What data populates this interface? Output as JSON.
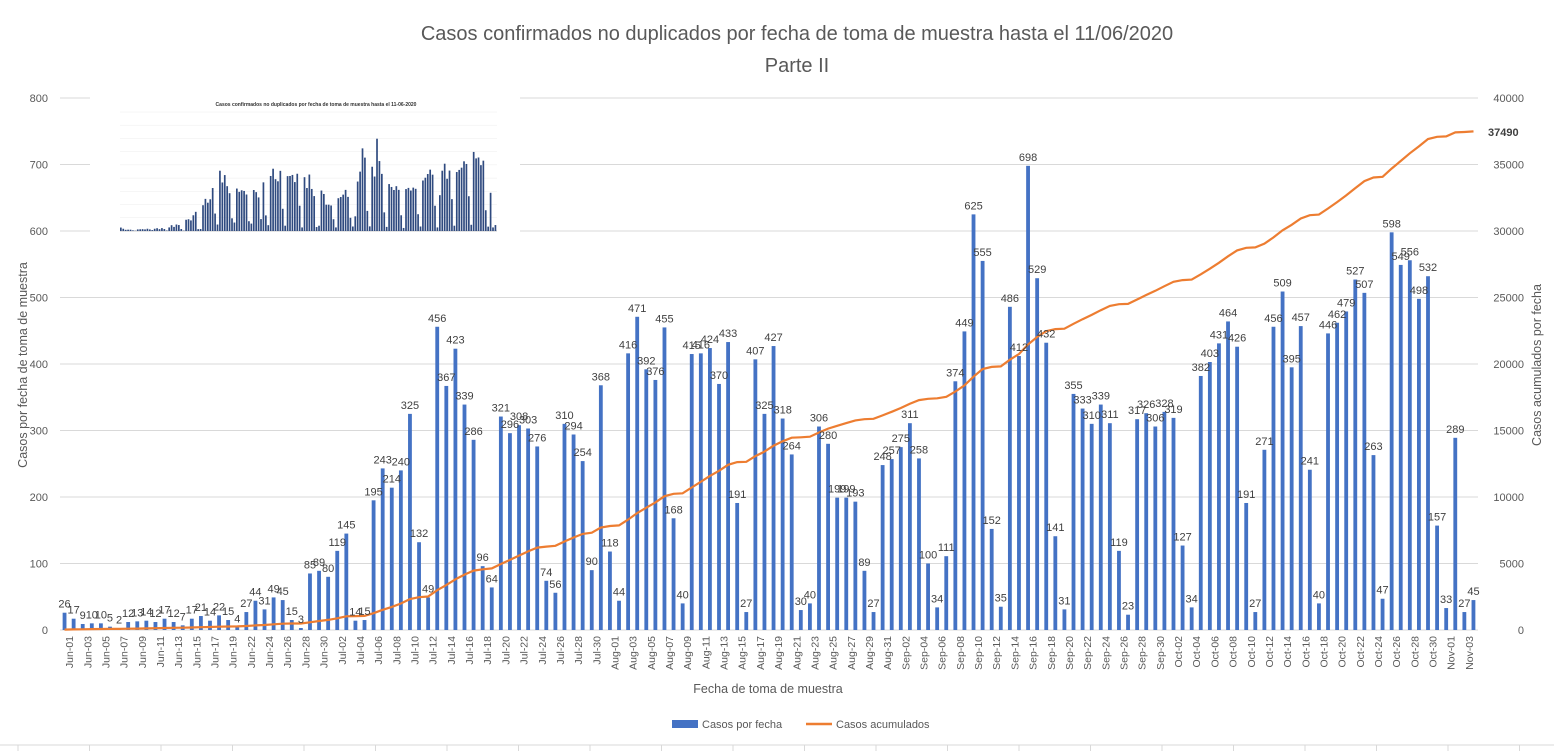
{
  "chart_data": {
    "type": "bar",
    "title": "Casos confirmados no duplicados por fecha de toma de muestra hasta el 11/06/2020",
    "subtitle": "Parte II",
    "xlabel": "Fecha de toma de muestra",
    "ylabel": "Casos por fecha de toma de muestra",
    "y2label": "Casos acumulados por fecha",
    "ylim": [
      0,
      800
    ],
    "y2lim": [
      0,
      40000
    ],
    "y_ticks": [
      "0",
      "100",
      "200",
      "300",
      "400",
      "500",
      "600",
      "700",
      "800"
    ],
    "y2_ticks": [
      "0",
      "5000",
      "10000",
      "15000",
      "20000",
      "25000",
      "30000",
      "35000",
      "40000"
    ],
    "x_tick_labels": [
      "Jun-01",
      "Jun-03",
      "Jun-05",
      "Jun-07",
      "Jun-09",
      "Jun-11",
      "Jun-13",
      "Jun-15",
      "Jun-17",
      "Jun-19",
      "Jun-22",
      "Jun-24",
      "Jun-26",
      "Jun-28",
      "Jun-30",
      "Jul-02",
      "Jul-04",
      "Jul-06",
      "Jul-08",
      "Jul-10",
      "Jul-12",
      "Jul-14",
      "Jul-16",
      "Jul-18",
      "Jul-20",
      "Jul-22",
      "Jul-24",
      "Jul-26",
      "Jul-28",
      "Jul-30",
      "Aug-01",
      "Aug-03",
      "Aug-05",
      "Aug-07",
      "Aug-09",
      "Aug-11",
      "Aug-13",
      "Aug-15",
      "Aug-17",
      "Aug-19",
      "Aug-21",
      "Aug-23",
      "Aug-25",
      "Aug-27",
      "Aug-29",
      "Aug-31",
      "Sep-02",
      "Sep-04",
      "Sep-06",
      "Sep-08",
      "Sep-10",
      "Sep-12",
      "Sep-14",
      "Sep-16",
      "Sep-18",
      "Sep-20",
      "Sep-22",
      "Sep-24",
      "Sep-26",
      "Sep-28",
      "Sep-30",
      "Oct-02",
      "Oct-04",
      "Oct-06",
      "Oct-08",
      "Oct-10",
      "Oct-12",
      "Oct-14",
      "Oct-16",
      "Oct-18",
      "Oct-20",
      "Oct-22",
      "Oct-24",
      "Oct-26",
      "Oct-28",
      "Oct-30",
      "Nov-01",
      "Nov-03"
    ],
    "series": [
      {
        "name": "Casos por fecha",
        "color": "#4472C4",
        "values": [
          26,
          17,
          9,
          10,
          10,
          5,
          2,
          12,
          13,
          14,
          12,
          17,
          12,
          7,
          17,
          21,
          14,
          22,
          15,
          4,
          27,
          44,
          31,
          49,
          45,
          15,
          3,
          85,
          89,
          80,
          119,
          145,
          14,
          15,
          195,
          243,
          214,
          240,
          325,
          132,
          49,
          456,
          367,
          423,
          339,
          286,
          96,
          64,
          321,
          296,
          308,
          303,
          276,
          74,
          56,
          310,
          294,
          254,
          90,
          368,
          118,
          44,
          416,
          471,
          392,
          376,
          455,
          168,
          40,
          415,
          416,
          424,
          370,
          433,
          191,
          27,
          407,
          325,
          427,
          318,
          264,
          30,
          40,
          306,
          280,
          199,
          199,
          193,
          89,
          27,
          248,
          257,
          275,
          311,
          258,
          100,
          34,
          111,
          374,
          449,
          625,
          555,
          152,
          35,
          486,
          412,
          698,
          529,
          432,
          141,
          31,
          355,
          333,
          310,
          339,
          311,
          119,
          23,
          317,
          326,
          306,
          328,
          319,
          127,
          34,
          382,
          403,
          431,
          464,
          426,
          191,
          27,
          271,
          456,
          509,
          395,
          457,
          241,
          40,
          446,
          462,
          479,
          527,
          507,
          263,
          47,
          598,
          549,
          556,
          498,
          532,
          157,
          33,
          289,
          27,
          45
        ]
      },
      {
        "name": "Casos acumulados",
        "color": "#ED7D31",
        "final_label": "37490"
      }
    ],
    "legend_position": "bottom",
    "grid": true
  },
  "inset": {
    "title": "Casos confirmados no duplicados por fecha de toma de muestra hasta el 11-06-2020",
    "y_ticks": [
      "0",
      "100",
      "200",
      "300",
      "400",
      "500",
      "600",
      "700",
      "800",
      "900"
    ]
  }
}
